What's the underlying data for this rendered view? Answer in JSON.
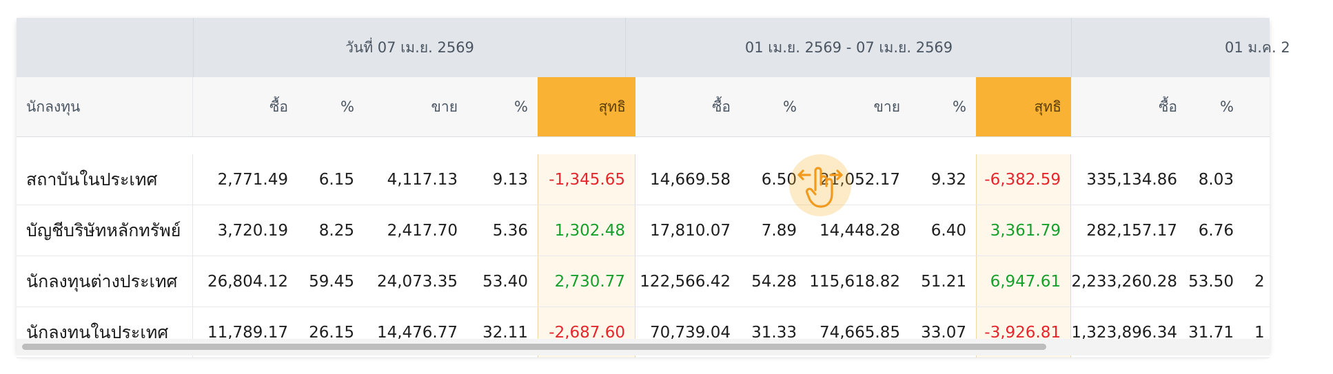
{
  "periods": [
    {
      "label": "วันที่ 07 เม.ย. 2569"
    },
    {
      "label": "01 เม.ย. 2569 - 07 เม.ย. 2569"
    },
    {
      "label": "01 ม.ค. 2"
    }
  ],
  "headers": {
    "investor": "นักลงทุน",
    "buy": "ซื้อ",
    "pct": "%",
    "sell": "ขาย",
    "net": "สุทธิ"
  },
  "rows": [
    {
      "name": "สถาบันในประเทศ",
      "p1": {
        "buy": "2,771.49",
        "buy_pct": "6.15",
        "sell": "4,117.13",
        "sell_pct": "9.13",
        "net": "-1,345.65"
      },
      "p2": {
        "buy": "14,669.58",
        "buy_pct": "6.50",
        "sell": "21,052.17",
        "sell_pct": "9.32",
        "net": "-6,382.59"
      },
      "p3": {
        "buy": "335,134.86",
        "buy_pct": "8.03",
        "sell": ""
      }
    },
    {
      "name": "บัญชีบริษัทหลักทรัพย์",
      "p1": {
        "buy": "3,720.19",
        "buy_pct": "8.25",
        "sell": "2,417.70",
        "sell_pct": "5.36",
        "net": "1,302.48"
      },
      "p2": {
        "buy": "17,810.07",
        "buy_pct": "7.89",
        "sell": "14,448.28",
        "sell_pct": "6.40",
        "net": "3,361.79"
      },
      "p3": {
        "buy": "282,157.17",
        "buy_pct": "6.76",
        "sell": ""
      }
    },
    {
      "name": "นักลงทุนต่างประเทศ",
      "p1": {
        "buy": "26,804.12",
        "buy_pct": "59.45",
        "sell": "24,073.35",
        "sell_pct": "53.40",
        "net": "2,730.77"
      },
      "p2": {
        "buy": "122,566.42",
        "buy_pct": "54.28",
        "sell": "115,618.82",
        "sell_pct": "51.21",
        "net": "6,947.61"
      },
      "p3": {
        "buy": "2,233,260.28",
        "buy_pct": "53.50",
        "sell": "2"
      }
    },
    {
      "name": "นักลงทุนในประเทศ",
      "p1": {
        "buy": "11,789.17",
        "buy_pct": "26.15",
        "sell": "14,476.77",
        "sell_pct": "32.11",
        "net": "-2,687.60"
      },
      "p2": {
        "buy": "70,739.04",
        "buy_pct": "31.33",
        "sell": "74,665.85",
        "sell_pct": "33.07",
        "net": "-3,926.81"
      },
      "p3": {
        "buy": "1,323,896.34",
        "buy_pct": "31.71",
        "sell": "1"
      }
    }
  ],
  "icons": {
    "scroll_hint": "swipe-hand-icon"
  },
  "colors": {
    "net_header": "#f9b233",
    "negative": "#e5262c",
    "positive": "#16a02c"
  }
}
